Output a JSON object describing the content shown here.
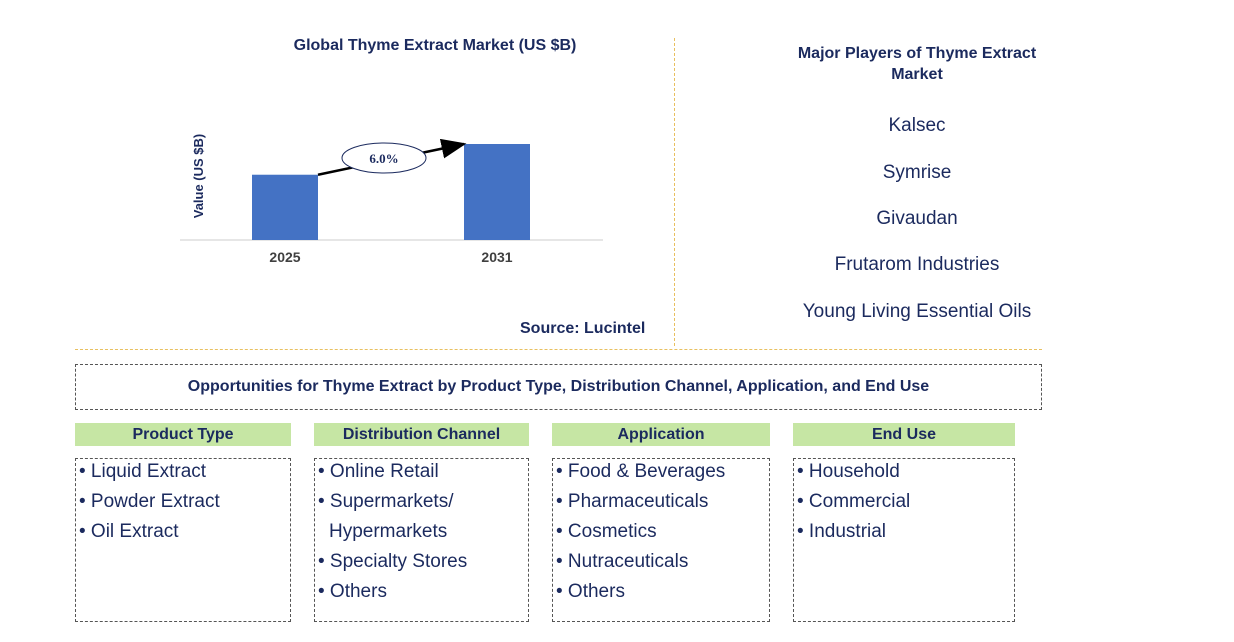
{
  "chart_data": {
    "type": "bar",
    "title": "Global Thyme Extract Market (US $B)",
    "ylabel": "Value (US $B)",
    "xlabel": "",
    "categories": [
      "2025",
      "2031"
    ],
    "values": [
      0.68,
      1.0
    ],
    "colors": {
      "bar": "#4472c4"
    },
    "annotation": {
      "label": "6.0%",
      "type": "cagr-arrow",
      "from": "2025",
      "to": "2031"
    },
    "grid": false,
    "legend": "none"
  },
  "source": "Source: Lucintel",
  "players": {
    "title": "Major Players of Thyme Extract Market",
    "items": [
      "Kalsec",
      "Symrise",
      "Givaudan",
      "Frutarom Industries",
      "Young Living Essential Oils"
    ]
  },
  "opportunities": {
    "title": "Opportunities for Thyme Extract by Product Type, Distribution Channel, Application, and End Use",
    "categories": [
      {
        "name": "Product Type",
        "items": [
          "• Liquid Extract",
          "• Powder Extract",
          "• Oil Extract"
        ]
      },
      {
        "name": "Distribution Channel",
        "items": [
          "• Online Retail",
          "• Supermarkets/",
          "Hypermarkets",
          "• Specialty Stores",
          "• Others"
        ]
      },
      {
        "name": "Application",
        "items": [
          "• Food & Beverages",
          "• Pharmaceuticals",
          "• Cosmetics",
          "• Nutraceuticals",
          "• Others"
        ]
      },
      {
        "name": "End Use",
        "items": [
          "• Household",
          "• Commercial",
          "• Industrial"
        ]
      }
    ]
  }
}
